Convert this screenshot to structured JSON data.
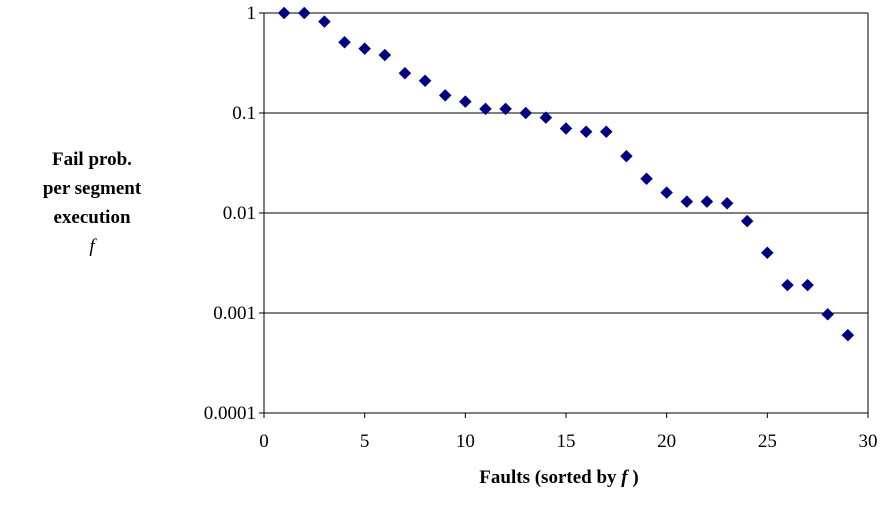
{
  "chart_data": {
    "type": "scatter",
    "ylabel_lines": [
      "Fail prob.",
      "per segment",
      "execution"
    ],
    "ylabel_symbol": "f",
    "xlabel_text": "Faults (sorted by ",
    "xlabel_symbol": "f",
    "xlabel_close": " )",
    "xlim": [
      0,
      30
    ],
    "ylim": [
      0.0001,
      1
    ],
    "yscale": "log",
    "x_ticks": [
      "0",
      "5",
      "10",
      "15",
      "20",
      "25",
      "30"
    ],
    "y_ticks": [
      "1",
      "0.1",
      "0.01",
      "0.001",
      "0.0001"
    ],
    "grid": "horizontal",
    "legend": "none",
    "marker_color": "#000080",
    "points": [
      {
        "x": 1,
        "y": 1.0
      },
      {
        "x": 2,
        "y": 1.0
      },
      {
        "x": 3,
        "y": 0.82
      },
      {
        "x": 4,
        "y": 0.51
      },
      {
        "x": 5,
        "y": 0.44
      },
      {
        "x": 6,
        "y": 0.38
      },
      {
        "x": 7,
        "y": 0.25
      },
      {
        "x": 8,
        "y": 0.21
      },
      {
        "x": 9,
        "y": 0.15
      },
      {
        "x": 10,
        "y": 0.13
      },
      {
        "x": 11,
        "y": 0.11
      },
      {
        "x": 12,
        "y": 0.11
      },
      {
        "x": 13,
        "y": 0.1
      },
      {
        "x": 14,
        "y": 0.09
      },
      {
        "x": 15,
        "y": 0.07
      },
      {
        "x": 16,
        "y": 0.065
      },
      {
        "x": 17,
        "y": 0.065
      },
      {
        "x": 18,
        "y": 0.037
      },
      {
        "x": 19,
        "y": 0.022
      },
      {
        "x": 20,
        "y": 0.016
      },
      {
        "x": 21,
        "y": 0.013
      },
      {
        "x": 22,
        "y": 0.013
      },
      {
        "x": 23,
        "y": 0.0125
      },
      {
        "x": 24,
        "y": 0.0083
      },
      {
        "x": 25,
        "y": 0.004
      },
      {
        "x": 26,
        "y": 0.0019
      },
      {
        "x": 27,
        "y": 0.0019
      },
      {
        "x": 28,
        "y": 0.00097
      },
      {
        "x": 29,
        "y": 0.0006
      }
    ]
  }
}
